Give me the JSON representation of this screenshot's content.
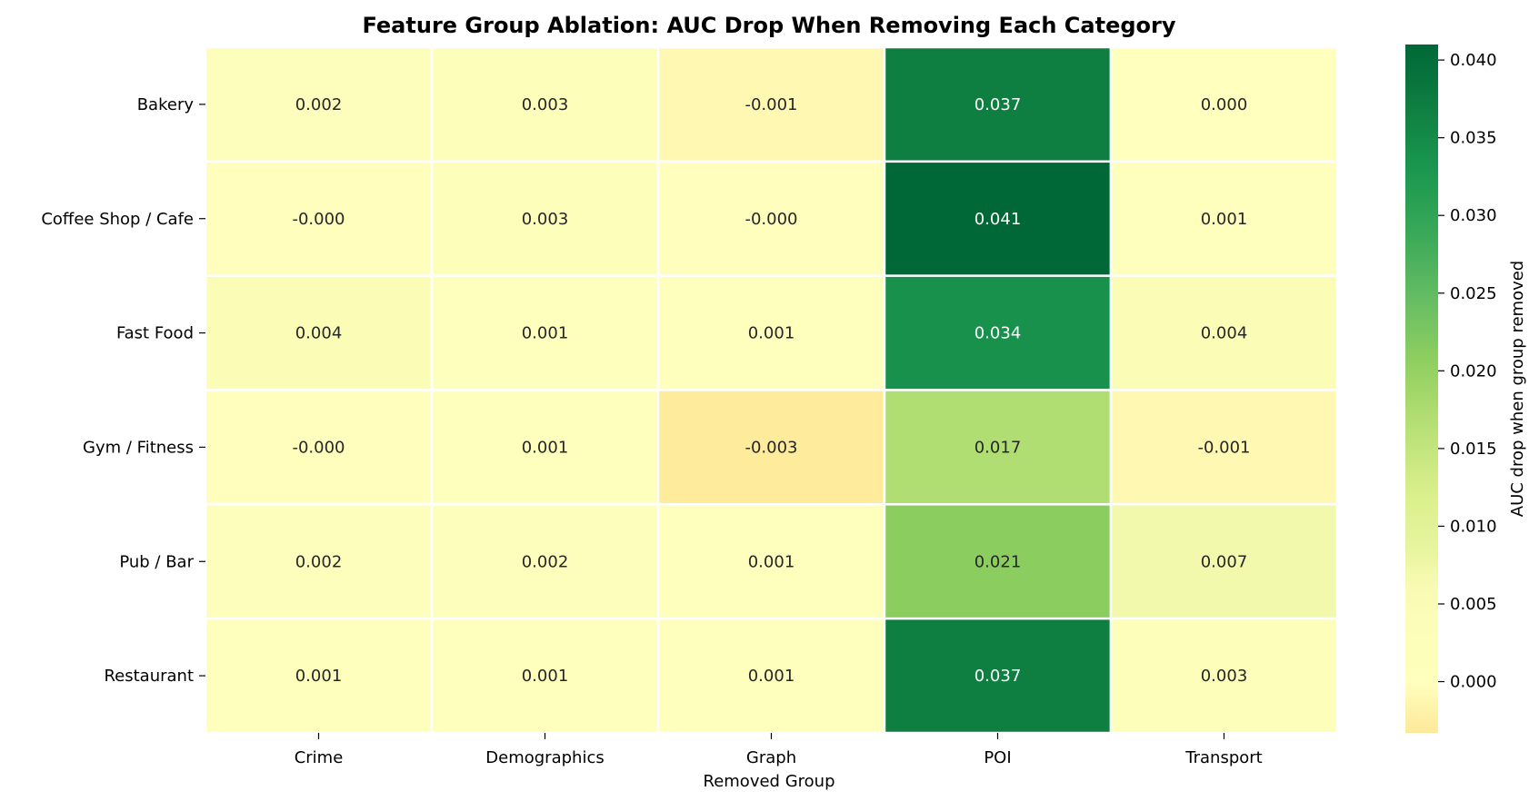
{
  "chart_data": {
    "type": "heatmap",
    "title": "Feature Group Ablation: AUC Drop When Removing Each Category",
    "xlabel": "Removed Group",
    "ylabel": "",
    "columns": [
      "Crime",
      "Demographics",
      "Graph",
      "POI",
      "Transport"
    ],
    "rows": [
      "Bakery",
      "Coffee Shop / Cafe",
      "Fast Food",
      "Gym / Fitness",
      "Pub / Bar",
      "Restaurant"
    ],
    "values": [
      [
        0.002,
        0.003,
        -0.001,
        0.037,
        0.0
      ],
      [
        -0.0001,
        0.003,
        -0.0001,
        0.041,
        0.001
      ],
      [
        0.004,
        0.001,
        0.001,
        0.034,
        0.004
      ],
      [
        -0.0001,
        0.001,
        -0.003,
        0.017,
        -0.001
      ],
      [
        0.002,
        0.002,
        0.001,
        0.021,
        0.007
      ],
      [
        0.001,
        0.001,
        0.001,
        0.037,
        0.003
      ]
    ],
    "labels": [
      [
        "0.002",
        "0.003",
        "-0.001",
        "0.037",
        "0.000"
      ],
      [
        "-0.000",
        "0.003",
        "-0.000",
        "0.041",
        "0.001"
      ],
      [
        "0.004",
        "0.001",
        "0.001",
        "0.034",
        "0.004"
      ],
      [
        "-0.000",
        "0.001",
        "-0.003",
        "0.017",
        "-0.001"
      ],
      [
        "0.002",
        "0.002",
        "0.001",
        "0.021",
        "0.007"
      ],
      [
        "0.001",
        "0.001",
        "0.001",
        "0.037",
        "0.003"
      ]
    ],
    "colormap": "RdYlGn-centered",
    "vmin": -0.0033,
    "vmax": 0.041,
    "grid": false,
    "colorbar": {
      "label": "AUC drop when group removed",
      "ticks": [
        0.04,
        0.035,
        0.03,
        0.025,
        0.02,
        0.015,
        0.01,
        0.005,
        0.0
      ],
      "tick_labels": [
        "0.040",
        "0.035",
        "0.030",
        "0.025",
        "0.020",
        "0.015",
        "0.010",
        "0.005",
        "0.000"
      ]
    },
    "colors": {
      "min_end": "#fee999",
      "center": "#ffffbe",
      "max_end": "#006837",
      "cell_border": "#ffffff",
      "dark_text": "#262626",
      "light_text": "#ffffff"
    }
  }
}
